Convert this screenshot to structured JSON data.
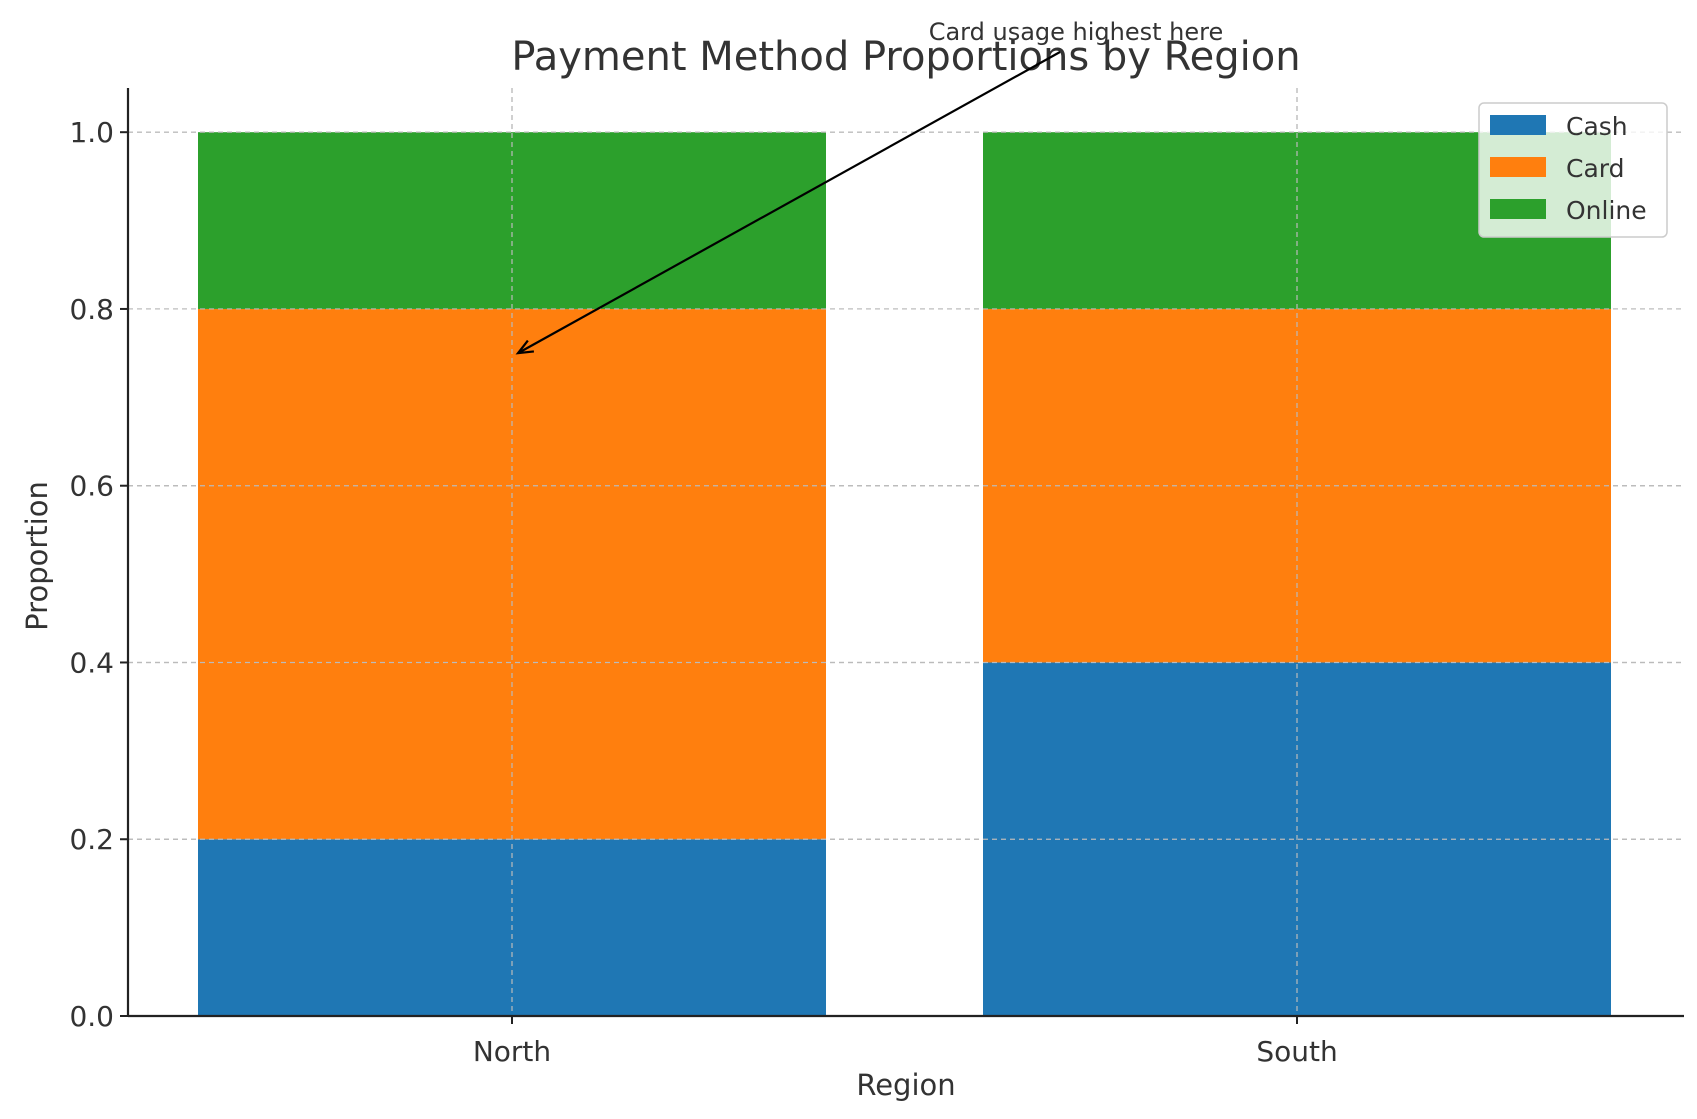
{
  "chart_data": {
    "type": "bar",
    "stacked": true,
    "title": "Payment Method Proportions by Region",
    "xlabel": "Region",
    "ylabel": "Proportion",
    "categories": [
      "North",
      "South"
    ],
    "series": [
      {
        "name": "Cash",
        "values": [
          0.2,
          0.4
        ],
        "color": "#1f77b4"
      },
      {
        "name": "Card",
        "values": [
          0.6,
          0.4
        ],
        "color": "#ff7f0e"
      },
      {
        "name": "Online",
        "values": [
          0.2,
          0.2
        ],
        "color": "#2ca02c"
      }
    ],
    "ylim": [
      0,
      1.05
    ],
    "yticks": [
      "0.0",
      "0.2",
      "0.4",
      "0.6",
      "0.8",
      "1.0"
    ],
    "grid": true,
    "legend_position": "top-right",
    "annotation": {
      "text": "Card usage highest here",
      "target_category": "North",
      "target_y": 0.75
    }
  }
}
